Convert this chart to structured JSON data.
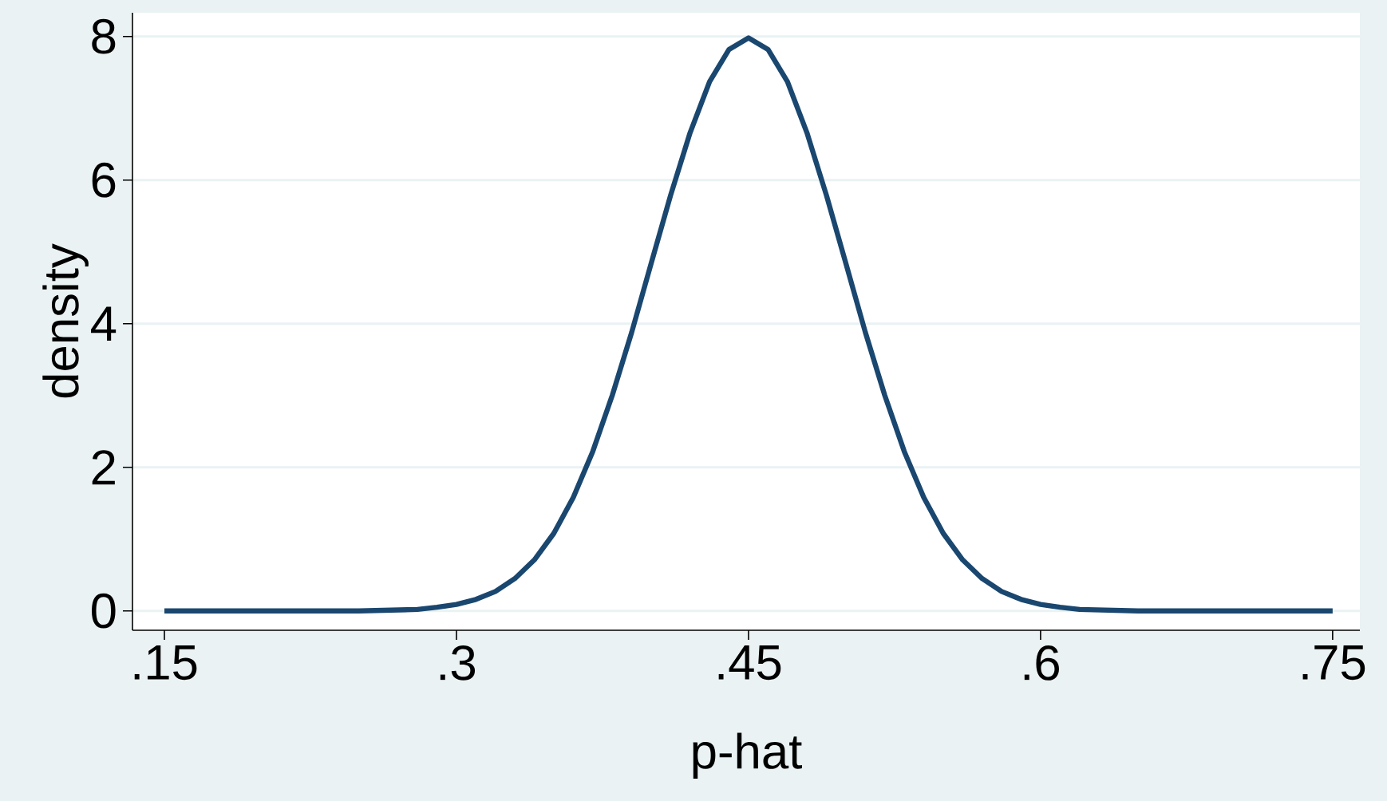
{
  "chart_data": {
    "type": "line",
    "xlabel": "p-hat",
    "ylabel": "density",
    "xlim": [
      0.1336,
      0.764
    ],
    "ylim": [
      -0.27,
      8.33
    ],
    "xticks": [
      {
        "value": 0.15,
        "label": ".15"
      },
      {
        "value": 0.3,
        "label": ".3"
      },
      {
        "value": 0.45,
        "label": ".45"
      },
      {
        "value": 0.6,
        "label": ".6"
      },
      {
        "value": 0.75,
        "label": ".75"
      }
    ],
    "yticks": [
      0,
      2,
      4,
      6,
      8
    ],
    "grid": "y",
    "marker": "none",
    "line_style": "solid",
    "series": [
      {
        "color": "#1a476f",
        "x": [
          0.15,
          0.2,
          0.25,
          0.28,
          0.29,
          0.3,
          0.31,
          0.32,
          0.33,
          0.34,
          0.35,
          0.36,
          0.37,
          0.38,
          0.39,
          0.4,
          0.41,
          0.42,
          0.43,
          0.44,
          0.45,
          0.46,
          0.47,
          0.48,
          0.49,
          0.5,
          0.51,
          0.52,
          0.53,
          0.54,
          0.55,
          0.56,
          0.57,
          0.58,
          0.59,
          0.6,
          0.61,
          0.62,
          0.65,
          0.7,
          0.75
        ],
        "values": [
          0,
          0,
          0,
          0.02,
          0.05,
          0.09,
          0.16,
          0.27,
          0.45,
          0.71,
          1.08,
          1.58,
          2.22,
          3.0,
          3.88,
          4.84,
          5.79,
          6.66,
          7.37,
          7.82,
          7.98,
          7.82,
          7.37,
          6.66,
          5.79,
          4.84,
          3.88,
          3.0,
          2.22,
          1.58,
          1.08,
          0.71,
          0.45,
          0.27,
          0.16,
          0.09,
          0.05,
          0.02,
          0,
          0,
          0
        ]
      }
    ]
  }
}
